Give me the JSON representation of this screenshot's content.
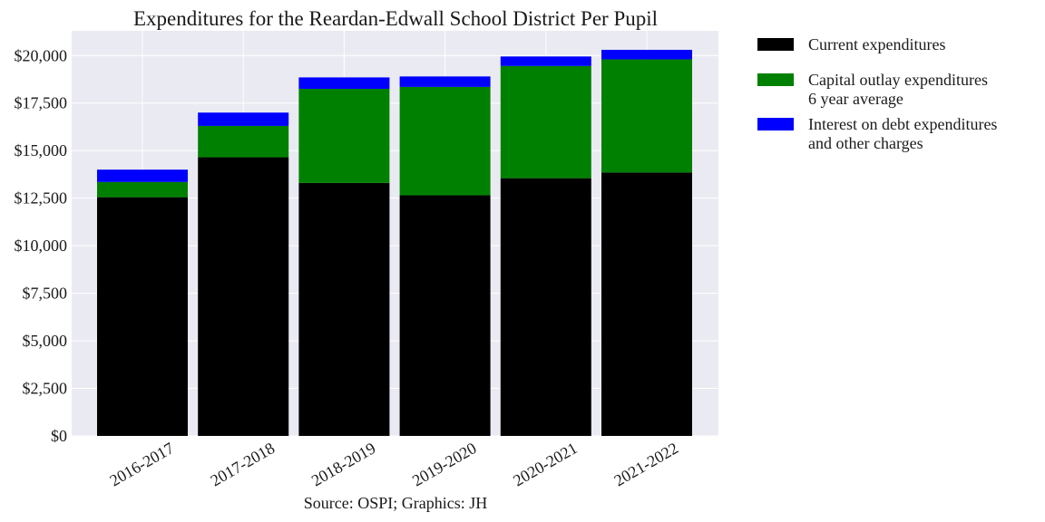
{
  "chart_data": {
    "type": "bar",
    "stacked": true,
    "title": "Expenditures for the Reardan-Edwall School District Per Pupil",
    "xlabel": "",
    "ylabel": "",
    "caption": "Source: OSPI; Graphics: JH",
    "categories": [
      "2016-2017",
      "2017-2018",
      "2018-2019",
      "2019-2020",
      "2020-2021",
      "2021-2022"
    ],
    "ylim": [
      0,
      21300
    ],
    "yticks": [
      0,
      2500,
      5000,
      7500,
      10000,
      12500,
      15000,
      17500,
      20000
    ],
    "ytick_labels": [
      "$0",
      "$2,500",
      "$5,000",
      "$7,500",
      "$10,000",
      "$12,500",
      "$15,000",
      "$17,500",
      "$20,000"
    ],
    "grid": true,
    "legend_position": "right-top",
    "series": [
      {
        "name": "Current expenditures",
        "color": "#000000",
        "values": [
          12550,
          14650,
          13300,
          12650,
          13550,
          13850
        ]
      },
      {
        "name": "Capital outlay expenditures\n6 year average",
        "color": "#008000",
        "values": [
          800,
          1650,
          4950,
          5700,
          5900,
          5950
        ]
      },
      {
        "name": "Interest on debt expenditures\nand other charges",
        "color": "#0000ff",
        "values": [
          650,
          700,
          600,
          550,
          500,
          500
        ]
      }
    ]
  }
}
